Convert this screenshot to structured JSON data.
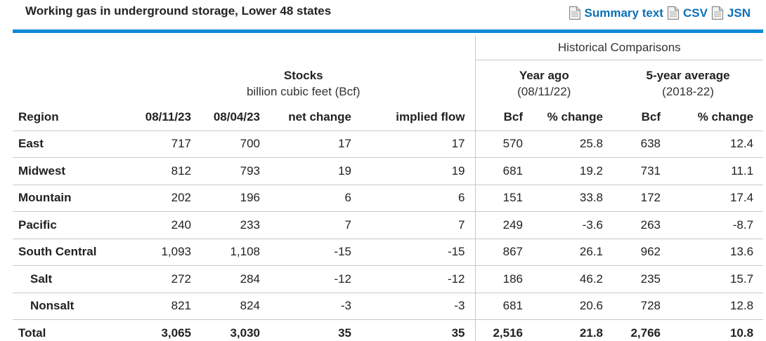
{
  "title": "Working gas in underground storage, Lower 48 states",
  "links": [
    {
      "label": "Summary text",
      "icon": "document-icon"
    },
    {
      "label": "CSV",
      "icon": "document-icon"
    },
    {
      "label": "JSN",
      "icon": "document-icon"
    }
  ],
  "accent_color": "#0b8bd6",
  "link_color": "#0b6fb8",
  "table": {
    "historical_caption": "Historical Comparisons",
    "stocks": {
      "title": "Stocks",
      "subtitle": "billion cubic feet (Bcf)"
    },
    "year_ago": {
      "title": "Year ago",
      "subtitle": "(08/11/22)"
    },
    "five_year": {
      "title": "5-year average",
      "subtitle": "(2018-22)"
    },
    "columns": [
      "Region",
      "08/11/23",
      "08/04/23",
      "net change",
      "implied flow",
      "Bcf",
      "% change",
      "Bcf",
      "% change"
    ],
    "rows": [
      {
        "region": "East",
        "sub": false,
        "values": [
          "717",
          "700",
          "17",
          "17",
          "570",
          "25.8",
          "638",
          "12.4"
        ]
      },
      {
        "region": "Midwest",
        "sub": false,
        "values": [
          "812",
          "793",
          "19",
          "19",
          "681",
          "19.2",
          "731",
          "11.1"
        ]
      },
      {
        "region": "Mountain",
        "sub": false,
        "values": [
          "202",
          "196",
          "6",
          "6",
          "151",
          "33.8",
          "172",
          "17.4"
        ]
      },
      {
        "region": "Pacific",
        "sub": false,
        "values": [
          "240",
          "233",
          "7",
          "7",
          "249",
          "-3.6",
          "263",
          "-8.7"
        ]
      },
      {
        "region": "South Central",
        "sub": false,
        "values": [
          "1,093",
          "1,108",
          "-15",
          "-15",
          "867",
          "26.1",
          "962",
          "13.6"
        ]
      },
      {
        "region": "Salt",
        "sub": true,
        "values": [
          "272",
          "284",
          "-12",
          "-12",
          "186",
          "46.2",
          "235",
          "15.7"
        ]
      },
      {
        "region": "Nonsalt",
        "sub": true,
        "values": [
          "821",
          "824",
          "-3",
          "-3",
          "681",
          "20.6",
          "728",
          "12.8"
        ]
      }
    ],
    "total": {
      "region": "Total",
      "values": [
        "3,065",
        "3,030",
        "35",
        "35",
        "2,516",
        "21.8",
        "2,766",
        "10.8"
      ]
    }
  }
}
